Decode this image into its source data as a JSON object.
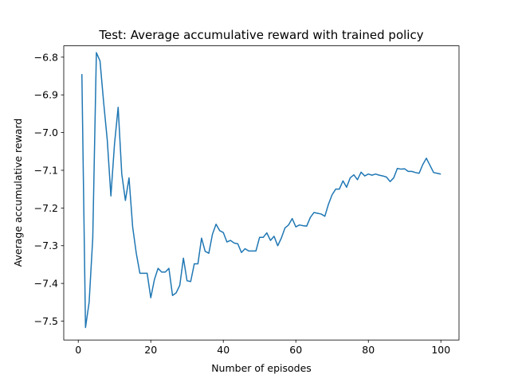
{
  "chart_data": {
    "type": "line",
    "title": "Test: Average accumulative reward with trained policy",
    "xlabel": "Number of episodes",
    "ylabel": "Average accumulative reward",
    "xlim": [
      -4,
      105
    ],
    "ylim": [
      -7.55,
      -6.77
    ],
    "xticks": [
      0,
      20,
      40,
      60,
      80,
      100
    ],
    "xtick_labels": [
      "0",
      "20",
      "40",
      "60",
      "80",
      "100"
    ],
    "yticks": [
      -6.8,
      -6.9,
      -7.0,
      -7.1,
      -7.2,
      -7.3,
      -7.4,
      -7.5
    ],
    "ytick_labels": [
      "−6.8",
      "−6.9",
      "−7.0",
      "−7.1",
      "−7.2",
      "−7.3",
      "−7.4",
      "−7.5"
    ],
    "grid": false,
    "color": "#1f77b4",
    "series": [
      {
        "x": [
          1,
          2,
          3,
          4,
          5,
          6,
          7,
          8,
          9,
          10,
          11,
          12,
          13,
          14,
          15,
          16,
          17,
          18,
          19,
          20,
          21,
          22,
          23,
          24,
          25,
          26,
          27,
          28,
          29,
          30,
          31,
          32,
          33,
          34,
          35,
          36,
          37,
          38,
          39,
          40,
          41,
          42,
          43,
          44,
          45,
          46,
          47,
          48,
          49,
          50,
          51,
          52,
          53,
          54,
          55,
          56,
          57,
          58,
          59,
          60,
          61,
          62,
          63,
          64,
          65,
          66,
          67,
          68,
          69,
          70,
          71,
          72,
          73,
          74,
          75,
          76,
          77,
          78,
          79,
          80,
          81,
          82,
          83,
          84,
          85,
          86,
          87,
          88,
          89,
          90,
          91,
          92,
          93,
          94,
          95,
          96,
          97,
          98,
          99,
          100
        ],
        "values": [
          -6.845,
          -7.517,
          -7.45,
          -7.28,
          -6.788,
          -6.81,
          -6.92,
          -7.02,
          -7.168,
          -7.03,
          -6.933,
          -7.11,
          -7.18,
          -7.12,
          -7.25,
          -7.32,
          -7.373,
          -7.373,
          -7.373,
          -7.438,
          -7.39,
          -7.36,
          -7.37,
          -7.37,
          -7.36,
          -7.432,
          -7.425,
          -7.405,
          -7.333,
          -7.393,
          -7.395,
          -7.348,
          -7.348,
          -7.28,
          -7.315,
          -7.32,
          -7.27,
          -7.243,
          -7.26,
          -7.265,
          -7.29,
          -7.286,
          -7.293,
          -7.295,
          -7.318,
          -7.308,
          -7.314,
          -7.314,
          -7.314,
          -7.278,
          -7.278,
          -7.266,
          -7.286,
          -7.275,
          -7.3,
          -7.28,
          -7.253,
          -7.245,
          -7.228,
          -7.25,
          -7.245,
          -7.247,
          -7.248,
          -7.225,
          -7.212,
          -7.214,
          -7.216,
          -7.222,
          -7.19,
          -7.165,
          -7.15,
          -7.15,
          -7.128,
          -7.145,
          -7.12,
          -7.112,
          -7.125,
          -7.105,
          -7.115,
          -7.11,
          -7.113,
          -7.11,
          -7.113,
          -7.115,
          -7.118,
          -7.13,
          -7.12,
          -7.095,
          -7.097,
          -7.096,
          -7.103,
          -7.103,
          -7.106,
          -7.108,
          -7.085,
          -7.068,
          -7.087,
          -7.106,
          -7.108,
          -7.11
        ]
      }
    ]
  }
}
